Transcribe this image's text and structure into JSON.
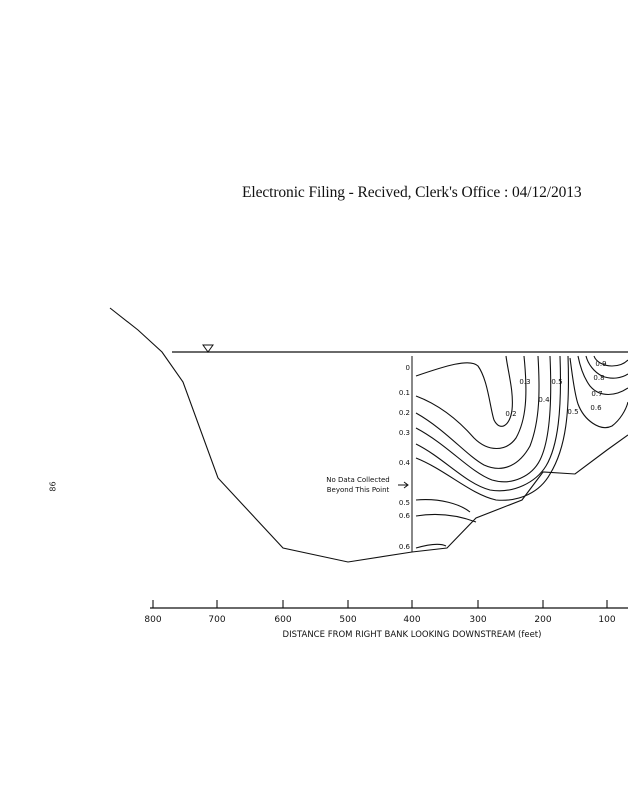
{
  "header": {
    "filing_stamp": "Electronic Filing - Recived, Clerk's Office :  04/12/2013"
  },
  "page_number": "86",
  "figure": {
    "x_axis": {
      "label": "DISTANCE FROM RIGHT BANK LOOKING DOWNSTREAM (feet)",
      "ticks": [
        "800",
        "700",
        "600",
        "500",
        "400",
        "300",
        "200",
        "100"
      ]
    },
    "depth_labels": [
      "0",
      "0.1",
      "0.2",
      "0.3",
      "0.4",
      "0.5",
      "0.6",
      "0.6"
    ],
    "annotation": {
      "line1": "No Data Collected",
      "line2": "Beyond This Point"
    },
    "contour_labels": [
      "0.2",
      "0.3",
      "0.4",
      "0.5",
      "0.5",
      "0.6",
      "0.7",
      "0.8",
      "0.9"
    ],
    "water_surface_symbol": "inverted-triangle-icon"
  }
}
